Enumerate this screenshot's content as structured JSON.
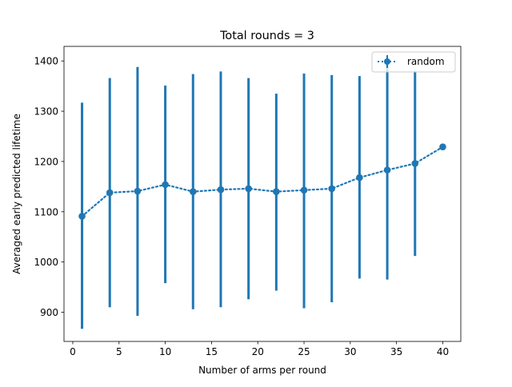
{
  "chart_data": {
    "type": "line",
    "title": "Total rounds = 3",
    "xlabel": "Number of arms per round",
    "ylabel": "Averaged early predicted lifetime",
    "xlim": [
      -0.95,
      41.95
    ],
    "ylim": [
      842,
      1429
    ],
    "x_ticks": [
      0,
      5,
      10,
      15,
      20,
      25,
      30,
      35,
      40
    ],
    "y_ticks": [
      900,
      1000,
      1100,
      1200,
      1300,
      1400
    ],
    "grid": false,
    "legend_position": "top-right",
    "series": [
      {
        "name": "random",
        "color": "#1f77b4",
        "line_style": "dotted",
        "marker": "circle",
        "x": [
          1,
          4,
          7,
          10,
          13,
          16,
          19,
          22,
          25,
          28,
          31,
          34,
          37,
          40
        ],
        "y": [
          1091,
          1138,
          1141,
          1154,
          1140,
          1144,
          1146,
          1140,
          1143,
          1146,
          1168,
          1183,
          1196,
          1229
        ],
        "err_low": [
          867,
          910,
          893,
          958,
          906,
          910,
          926,
          943,
          908,
          920,
          967,
          965,
          1012,
          1229
        ],
        "err_high": [
          1317,
          1366,
          1388,
          1351,
          1374,
          1379,
          1366,
          1335,
          1375,
          1372,
          1370,
          1401,
          1380,
          1229
        ]
      }
    ]
  }
}
